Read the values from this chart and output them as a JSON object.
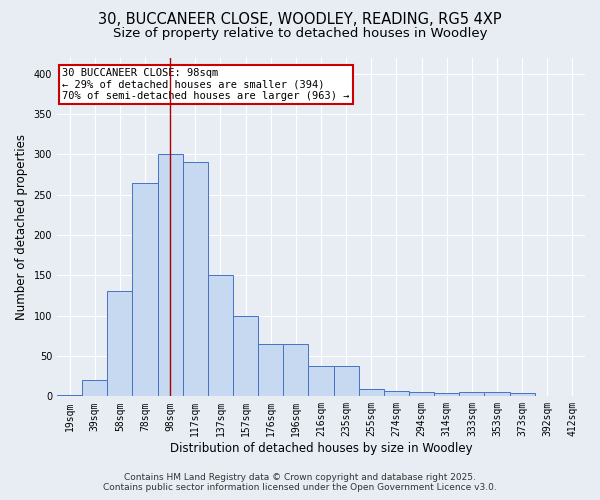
{
  "title_line1": "30, BUCCANEER CLOSE, WOODLEY, READING, RG5 4XP",
  "title_line2": "Size of property relative to detached houses in Woodley",
  "xlabel": "Distribution of detached houses by size in Woodley",
  "ylabel": "Number of detached properties",
  "bar_labels": [
    "19sqm",
    "39sqm",
    "58sqm",
    "78sqm",
    "98sqm",
    "117sqm",
    "137sqm",
    "157sqm",
    "176sqm",
    "196sqm",
    "216sqm",
    "235sqm",
    "255sqm",
    "274sqm",
    "294sqm",
    "314sqm",
    "333sqm",
    "353sqm",
    "373sqm",
    "392sqm",
    "412sqm"
  ],
  "bar_values": [
    2,
    20,
    130,
    265,
    300,
    290,
    150,
    100,
    65,
    65,
    38,
    38,
    9,
    6,
    5,
    4,
    5,
    5,
    4,
    0,
    0
  ],
  "bar_color": "#c6d9f0",
  "bar_edge_color": "#4472c4",
  "highlight_bar_index": 4,
  "highlight_line_color": "#aa0000",
  "annotation_text": "30 BUCCANEER CLOSE: 98sqm\n← 29% of detached houses are smaller (394)\n70% of semi-detached houses are larger (963) →",
  "annotation_box_color": "#ffffff",
  "annotation_box_edge_color": "#cc0000",
  "ylim": [
    0,
    420
  ],
  "yticks": [
    0,
    50,
    100,
    150,
    200,
    250,
    300,
    350,
    400
  ],
  "background_color": "#e8edf4",
  "grid_color": "#ffffff",
  "footer_line1": "Contains HM Land Registry data © Crown copyright and database right 2025.",
  "footer_line2": "Contains public sector information licensed under the Open Government Licence v3.0.",
  "title_fontsize": 10.5,
  "subtitle_fontsize": 9.5,
  "axis_label_fontsize": 8.5,
  "tick_fontsize": 7,
  "annotation_fontsize": 7.5,
  "footer_fontsize": 6.5
}
